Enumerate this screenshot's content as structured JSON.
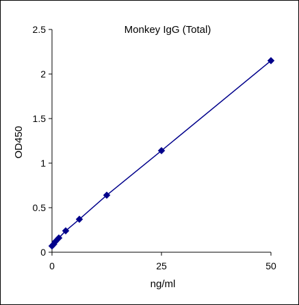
{
  "chart_data": {
    "type": "line",
    "title": "Monkey IgG (Total)",
    "xlabel": "ng/ml",
    "ylabel": "OD450",
    "xlim": [
      0,
      50
    ],
    "ylim": [
      0,
      2.5
    ],
    "x_ticks": [
      {
        "value": 0,
        "label": "0"
      },
      {
        "value": 25,
        "label": "25"
      },
      {
        "value": 50,
        "label": "50"
      }
    ],
    "y_ticks": [
      {
        "value": 0,
        "label": "0"
      },
      {
        "value": 0.5,
        "label": "0.5"
      },
      {
        "value": 1,
        "label": "1"
      },
      {
        "value": 1.5,
        "label": "1.5"
      },
      {
        "value": 2,
        "label": "2"
      },
      {
        "value": 2.5,
        "label": "2.5"
      }
    ],
    "grid": false,
    "legend": "none",
    "series": [
      {
        "color": "#00008B",
        "marker": "diamond",
        "x": [
          0,
          0.39,
          0.78,
          1.56,
          3.125,
          6.25,
          12.5,
          25,
          50
        ],
        "y": [
          0.07,
          0.09,
          0.12,
          0.16,
          0.24,
          0.37,
          0.64,
          1.14,
          2.15
        ]
      }
    ]
  }
}
